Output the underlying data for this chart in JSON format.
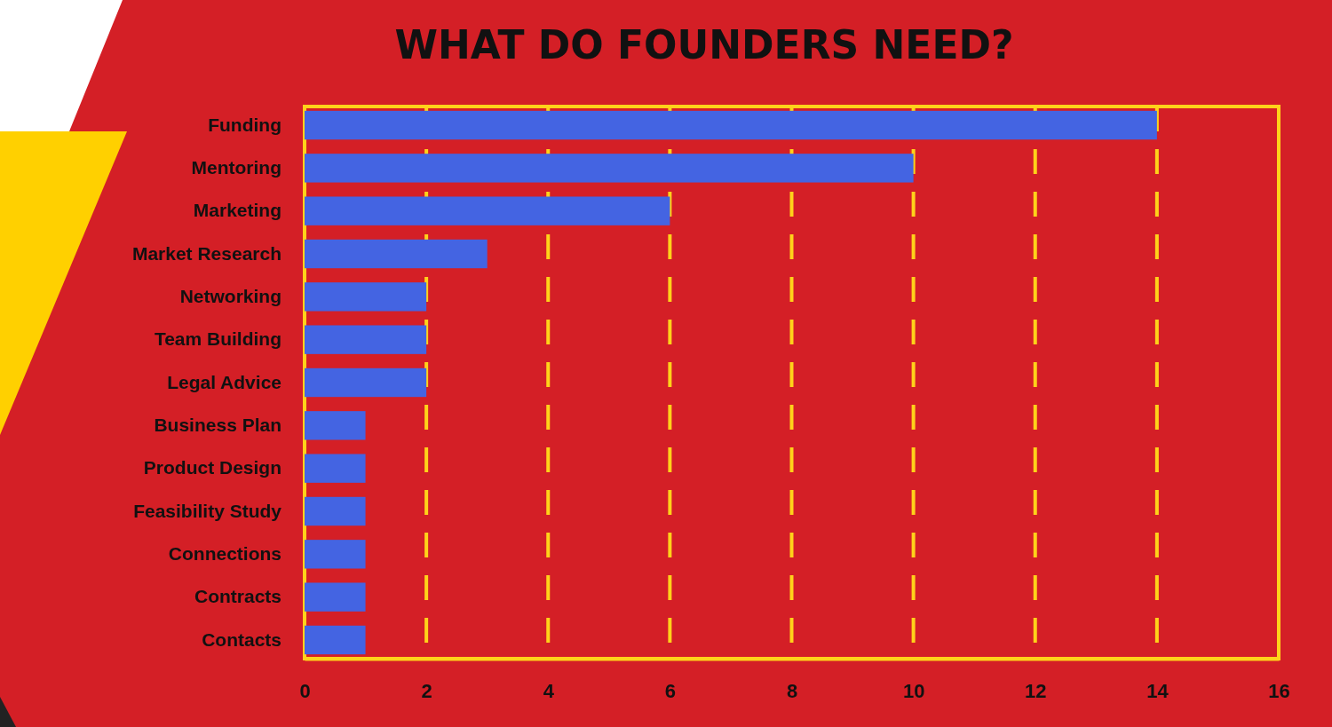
{
  "chart_data": {
    "type": "bar",
    "orientation": "horizontal",
    "title": "WHAT DO FOUNDERS NEED?",
    "categories": [
      "Funding",
      "Mentoring",
      "Marketing",
      "Market Research",
      "Networking",
      "Team Building",
      "Legal Advice",
      "Business Plan",
      "Product Design",
      "Feasibility Study",
      "Connections",
      "Contracts",
      "Contacts"
    ],
    "values": [
      14,
      10,
      6,
      3,
      2,
      2,
      2,
      1,
      1,
      1,
      1,
      1,
      1
    ],
    "color": "#4464e2",
    "xlim": [
      0,
      16
    ],
    "xticks": [
      0,
      2,
      4,
      6,
      8,
      10,
      12,
      14,
      16
    ],
    "grid": "x"
  }
}
